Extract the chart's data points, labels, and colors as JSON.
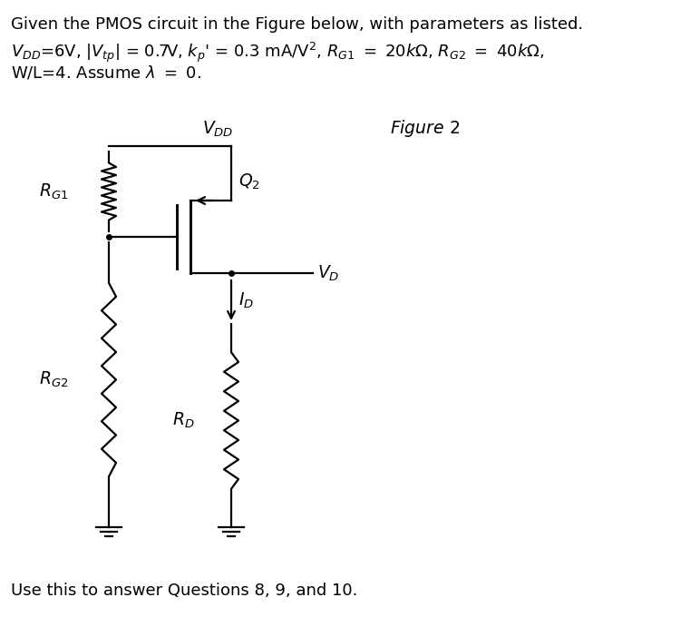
{
  "bg_color": "#ffffff",
  "line1": "Given the PMOS circuit in the Figure below, with parameters as listed.",
  "line2": "V_DD=6V, |V_tp| = 0.7V, k_p' = 0.3 mA/V^2, R_G1 = 20kOhm, R_G2 = 40kOhm,",
  "line3": "W/L=4. Assume lambda = 0.",
  "bottom": "Use this to answer Questions 8, 9, and 10.",
  "figure_label": "Figure 2",
  "lw": 1.6
}
